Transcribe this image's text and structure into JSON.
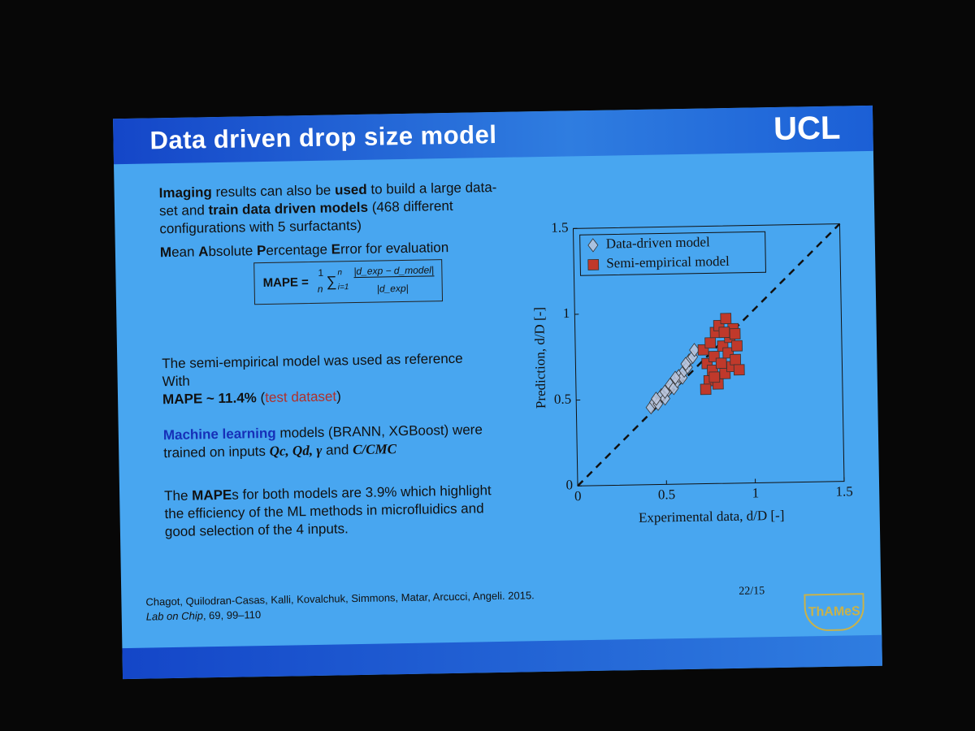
{
  "slide": {
    "title": "Data driven drop size model",
    "logo": "UCL",
    "intro": [
      "Imaging",
      " results can also be ",
      "used",
      " to build a large data-set and ",
      "train data driven models",
      " (468 different configurations with 5 surfactants)"
    ],
    "metric": [
      "M",
      "ean ",
      "A",
      "bsolute ",
      "P",
      "ercentage ",
      "E",
      "rror for evaluation"
    ],
    "formula": {
      "lhs": "MAPE =",
      "coef_num": "1",
      "coef_den": "n",
      "sum": "∑",
      "sum_range": "i=1",
      "sum_top": "n",
      "numerator": "|d_exp − d_model|",
      "denominator": "|d_exp|"
    },
    "reference": [
      "The semi-empirical model was used as reference",
      "With",
      "MAPE ~ 11.4%",
      " (",
      "test dataset",
      ")"
    ],
    "ml": [
      "Machine learning",
      " models (BRANN, XGBoost) were trained  on inputs ",
      "Qc, Qd, γ",
      " and ",
      "C/CMC"
    ],
    "conclusion": [
      "The ",
      "MAPE",
      "s for both models are 3.9% which highlight the efficiency of the ML methods in microfluidics and good selection of the 4 inputs."
    ],
    "citation": {
      "authors": "Chagot, Quilodran-Casas, Kalli, Kovalchuk, Simmons, Matar, Arcucci, Angeli. 2015.",
      "journal": "Lab on Chip",
      "details": ", 69, 99–110"
    },
    "page_number": "22/15",
    "footer_logo": "ThAMeS"
  },
  "chart_data": {
    "type": "scatter",
    "xlabel": "Experimental data, d/D [-]",
    "ylabel": "Prediction, d/D [-]",
    "xlim": [
      0,
      1.5
    ],
    "ylim": [
      0,
      1.5
    ],
    "xticks": [
      0,
      0.5,
      1,
      1.5
    ],
    "yticks": [
      0,
      0.5,
      1,
      1.5
    ],
    "legend": "upper left",
    "identity_line": true,
    "series": [
      {
        "name": "Data-driven model",
        "color": "#bcc6dc",
        "marker": "diamond",
        "x": [
          0.42,
          0.44,
          0.46,
          0.48,
          0.5,
          0.52,
          0.53,
          0.55,
          0.57,
          0.58,
          0.6,
          0.61,
          0.63,
          0.64,
          0.66,
          0.67,
          0.5,
          0.56,
          0.62,
          0.45
        ],
        "y": [
          0.45,
          0.48,
          0.47,
          0.52,
          0.5,
          0.55,
          0.58,
          0.56,
          0.6,
          0.63,
          0.62,
          0.66,
          0.68,
          0.72,
          0.74,
          0.78,
          0.54,
          0.62,
          0.7,
          0.5
        ]
      },
      {
        "name": "Semi-empirical model",
        "color": "#c0392b",
        "marker": "square",
        "x": [
          0.72,
          0.74,
          0.75,
          0.76,
          0.77,
          0.78,
          0.79,
          0.8,
          0.81,
          0.82,
          0.83,
          0.84,
          0.85,
          0.86,
          0.87,
          0.88,
          0.89,
          0.9,
          0.91,
          0.92,
          0.73,
          0.84,
          0.78,
          0.9
        ],
        "y": [
          0.78,
          0.7,
          0.6,
          0.82,
          0.66,
          0.74,
          0.88,
          0.58,
          0.92,
          0.7,
          0.8,
          0.64,
          0.96,
          0.76,
          0.85,
          0.68,
          0.9,
          0.72,
          0.8,
          0.66,
          0.55,
          0.88,
          0.62,
          0.87
        ]
      }
    ]
  }
}
